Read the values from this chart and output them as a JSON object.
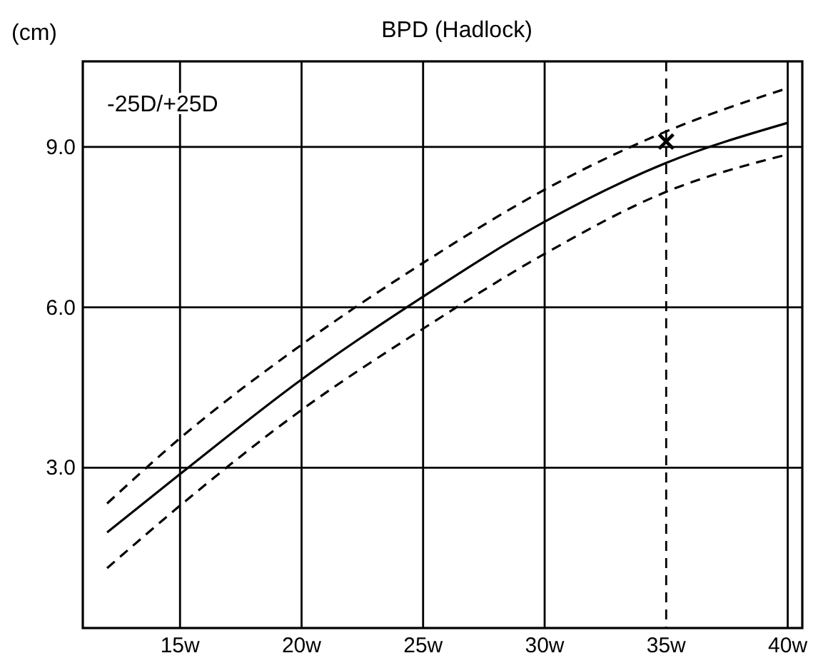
{
  "chart_data": {
    "type": "line",
    "title": "BPD (Hadlock)",
    "ylabel": "(cm)",
    "annotations": [
      "-25D/+25D"
    ],
    "xlim": [
      11,
      40.6
    ],
    "ylim": [
      0,
      10.6
    ],
    "xticks": [
      {
        "value": 15,
        "label": "15w"
      },
      {
        "value": 20,
        "label": "20w"
      },
      {
        "value": 25,
        "label": "25w"
      },
      {
        "value": 30,
        "label": "30w"
      },
      {
        "value": 35,
        "label": "35w"
      },
      {
        "value": 40,
        "label": "40w"
      }
    ],
    "yticks": [
      {
        "value": 3,
        "label": "3.0"
      },
      {
        "value": 6,
        "label": "6.0"
      },
      {
        "value": 9,
        "label": "9.0"
      }
    ],
    "grid": true,
    "ref_lines": [
      {
        "axis": "x",
        "value": 35,
        "label": null,
        "color": "#000000",
        "line_style": "dashed"
      }
    ],
    "series": [
      {
        "color": "#000000",
        "line_style": "dashed",
        "x": [
          12,
          15,
          20,
          25,
          30,
          35,
          40
        ],
        "values": [
          2.33,
          3.55,
          5.3,
          6.83,
          8.2,
          9.29,
          10.1
        ]
      },
      {
        "color": "#000000",
        "line_style": "solid",
        "x": [
          12,
          15,
          20,
          25,
          30,
          35,
          40
        ],
        "values": [
          1.79,
          2.88,
          4.65,
          6.2,
          7.6,
          8.7,
          9.45
        ]
      },
      {
        "color": "#000000",
        "line_style": "dashed",
        "x": [
          12,
          15,
          20,
          25,
          30,
          35,
          40
        ],
        "values": [
          1.12,
          2.29,
          4.08,
          5.6,
          7.0,
          8.16,
          8.86
        ]
      },
      {
        "type": "scatter",
        "marker": "cross",
        "color": "#000000",
        "x": [
          35
        ],
        "values": [
          9.1
        ]
      }
    ]
  }
}
